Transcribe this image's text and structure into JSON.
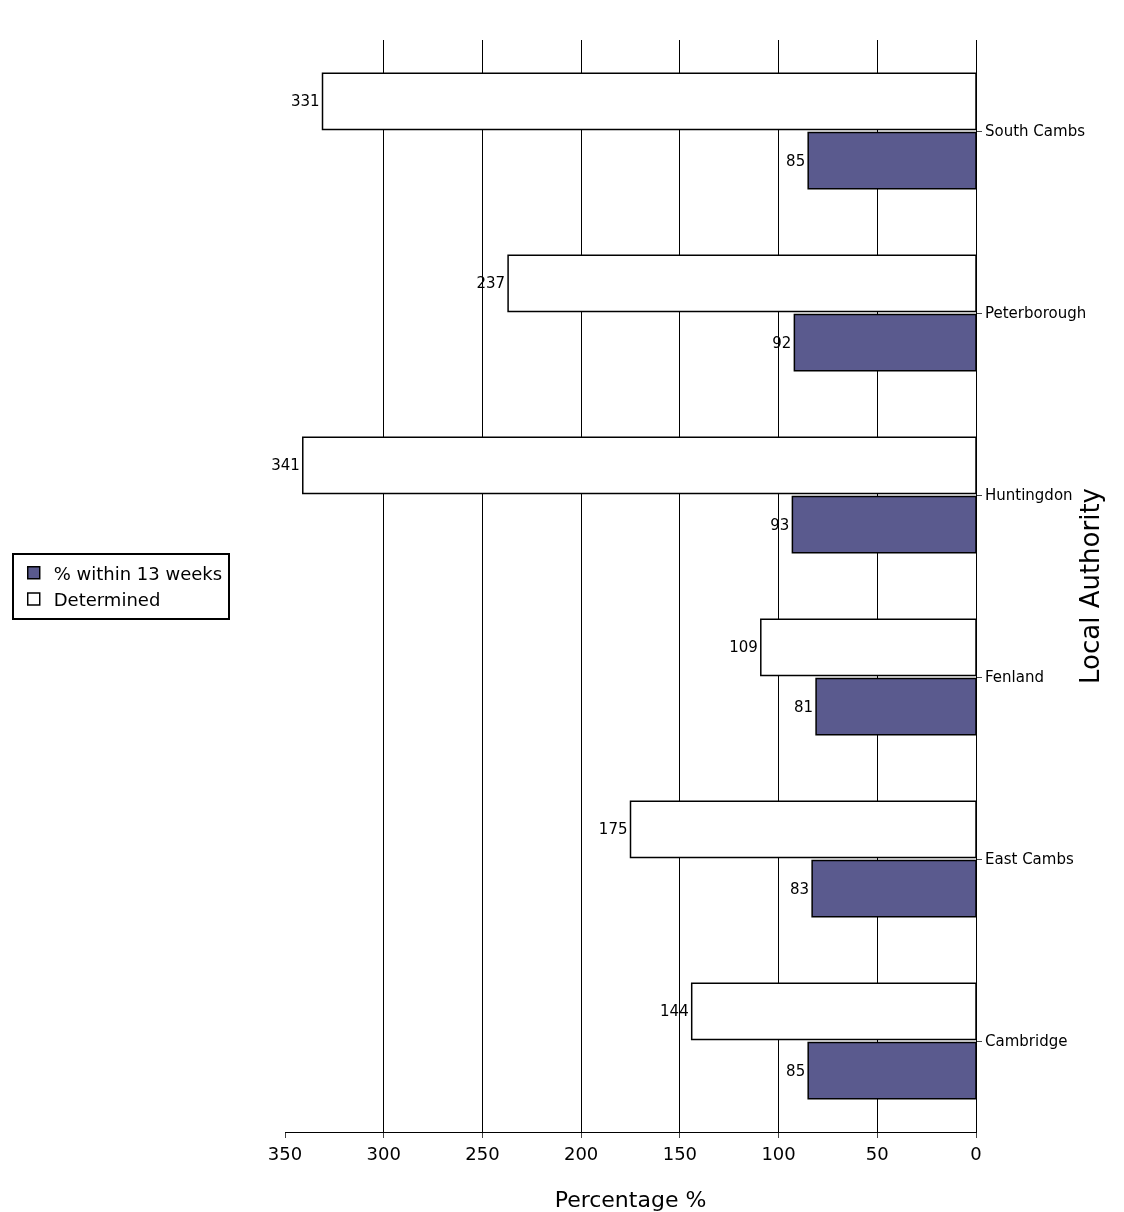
{
  "chart_data": {
    "type": "bar",
    "orientation": "horizontal",
    "xlabel": "Percentage %",
    "ylabel": "Local Authority",
    "categories": [
      "South Cambs",
      "Peterborough",
      "Huntingdon",
      "Fenland",
      "East Cambs",
      "Cambridge"
    ],
    "series": [
      {
        "name": "% within 13 weeks",
        "color": "#5a5a8e",
        "values": [
          85,
          92,
          93,
          81,
          83,
          85
        ]
      },
      {
        "name": "Determined",
        "color": "#ffffff",
        "values": [
          331,
          237,
          341,
          109,
          175,
          144
        ]
      }
    ],
    "xlim": [
      350,
      0
    ],
    "xticks": [
      350,
      300,
      250,
      200,
      150,
      100,
      50,
      0
    ],
    "grid": "x",
    "legend": "left",
    "data_labels": true
  }
}
